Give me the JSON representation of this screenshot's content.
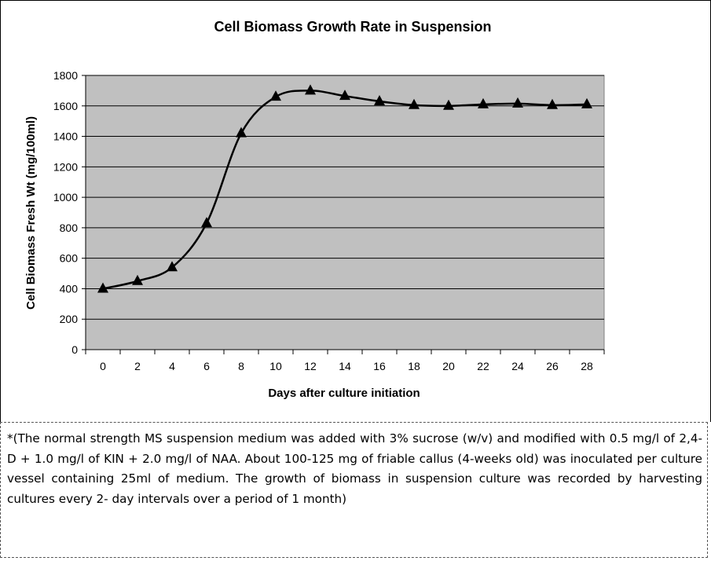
{
  "chart_data": {
    "type": "line",
    "title": "Cell Biomass Growth Rate in Suspension",
    "xlabel": "Days after culture initiation",
    "ylabel": "Cell Biomass Fresh Wt (mg/100ml)",
    "categories": [
      "0",
      "2",
      "4",
      "6",
      "8",
      "10",
      "12",
      "14",
      "16",
      "18",
      "20",
      "22",
      "24",
      "26",
      "28"
    ],
    "values": [
      400,
      450,
      540,
      830,
      1420,
      1660,
      1700,
      1665,
      1630,
      1605,
      1600,
      1610,
      1615,
      1605,
      1610
    ],
    "ylim": [
      0,
      1800
    ],
    "yticks": [
      "0",
      "200",
      "400",
      "600",
      "800",
      "1000",
      "1200",
      "1400",
      "1600",
      "1800"
    ],
    "grid": true,
    "marker": "triangle",
    "smooth": true,
    "plot_background": "#c0c0c0",
    "line_color": "#000000"
  },
  "note": "*(The normal strength MS suspension medium was added with 3% sucrose (w/v) and modified with 0.5 mg/l of 2,4-D + 1.0 mg/l of KIN + 2.0 mg/l of NAA. About 100-125 mg of friable callus (4-weeks old) was inoculated per culture vessel containing 25ml of medium. The growth of biomass in suspension culture was recorded by harvesting cultures every 2- day intervals over a period of 1 month)"
}
